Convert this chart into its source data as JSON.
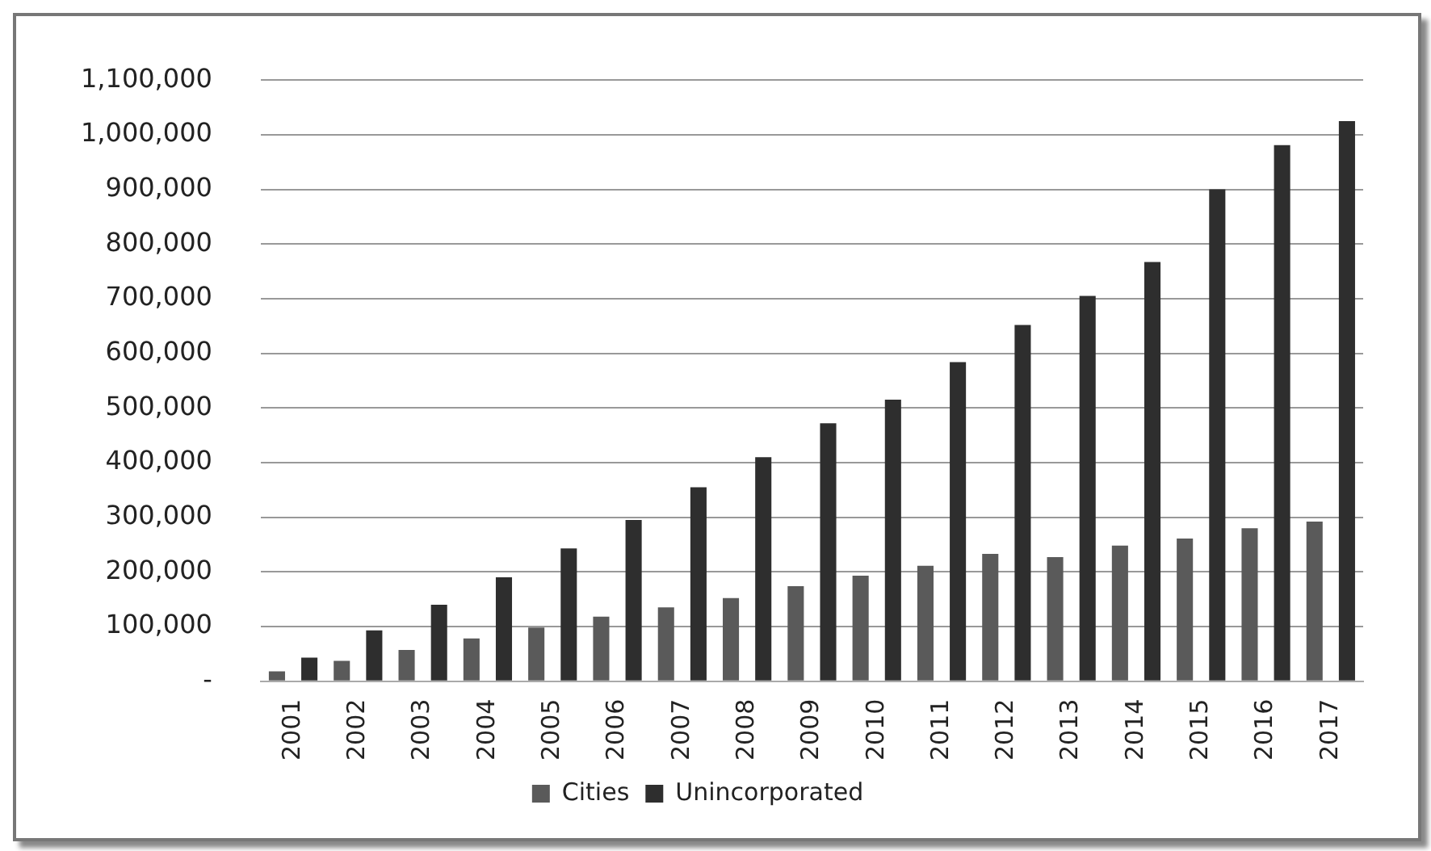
{
  "chart_data": {
    "type": "bar",
    "categories": [
      "2001",
      "2002",
      "2003",
      "2004",
      "2005",
      "2006",
      "2007",
      "2008",
      "2009",
      "2010",
      "2011",
      "2012",
      "2013",
      "2014",
      "2015",
      "2016",
      "2017"
    ],
    "series": [
      {
        "name": "Cities",
        "color": "#5a5a5a",
        "values": [
          18000,
          37000,
          57000,
          78000,
          98000,
          118000,
          135000,
          152000,
          174000,
          193000,
          211000,
          233000,
          227000,
          248000,
          261000,
          280000,
          292000
        ]
      },
      {
        "name": "Unincorporated",
        "color": "#2e2e2e",
        "values": [
          43000,
          93000,
          140000,
          190000,
          243000,
          295000,
          355000,
          410000,
          472000,
          515000,
          584000,
          652000,
          705000,
          767000,
          900000,
          981000,
          1025000
        ]
      }
    ],
    "ylim": [
      0,
      1100000
    ],
    "yticks": [
      {
        "value": 0,
        "label": "-"
      },
      {
        "value": 100000,
        "label": "100,000"
      },
      {
        "value": 200000,
        "label": "200,000"
      },
      {
        "value": 300000,
        "label": "300,000"
      },
      {
        "value": 400000,
        "label": "400,000"
      },
      {
        "value": 500000,
        "label": "500,000"
      },
      {
        "value": 600000,
        "label": "600,000"
      },
      {
        "value": 700000,
        "label": "700,000"
      },
      {
        "value": 800000,
        "label": "800,000"
      },
      {
        "value": 900000,
        "label": "900,000"
      },
      {
        "value": 1000000,
        "label": "1,000,000"
      },
      {
        "value": 1100000,
        "label": "1,100,000"
      }
    ],
    "grid": "y",
    "legend": "bottom"
  }
}
